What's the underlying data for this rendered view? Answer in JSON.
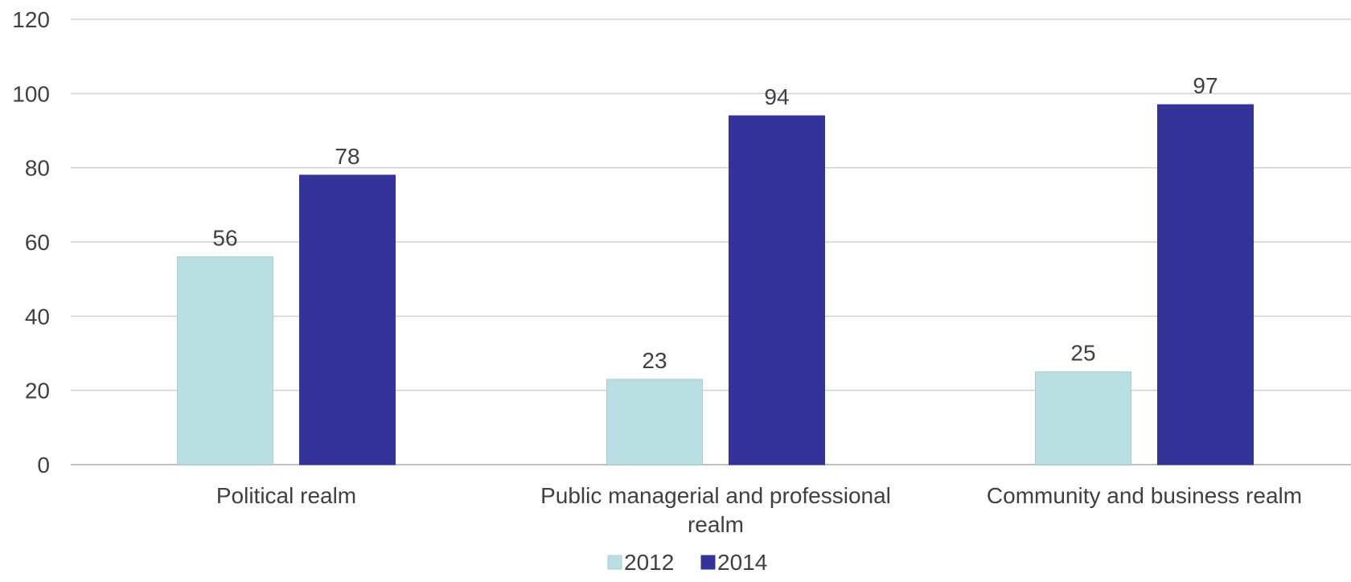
{
  "chart_data": {
    "type": "bar",
    "categories": [
      [
        "Political realm"
      ],
      [
        "Public managerial and professional",
        "realm"
      ],
      [
        "Community and business realm"
      ]
    ],
    "series": [
      {
        "name": "2012",
        "values": [
          56,
          23,
          25
        ],
        "color": "#b9dfe3"
      },
      {
        "name": "2014",
        "values": [
          78,
          94,
          97
        ],
        "color": "#333399"
      }
    ],
    "ylim": [
      0,
      120
    ],
    "yticks": [
      0,
      20,
      40,
      60,
      80,
      100,
      120
    ],
    "grid": true,
    "legend_position": "bottom"
  }
}
